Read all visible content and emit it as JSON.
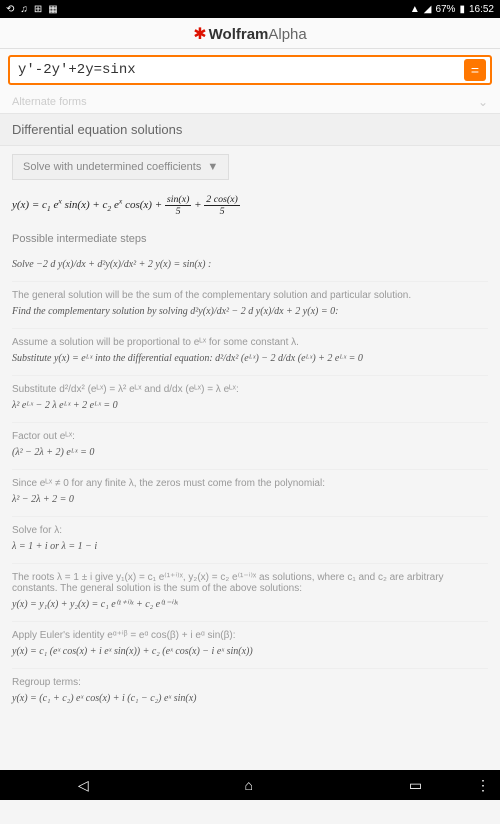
{
  "statusbar": {
    "icons_left": [
      "⟲",
      "♫",
      "⊞",
      "▦"
    ],
    "wifi": "▲",
    "signal": "◢",
    "battery_pct": "67%",
    "time": "16:52"
  },
  "logo": {
    "wolfram": "Wolfram",
    "alpha": "Alpha"
  },
  "search": {
    "value": "y'-2y'+2y=sinx",
    "submit_glyph": "="
  },
  "faded_label": "Alternate forms",
  "section_title": "Differential equation solutions",
  "dropdown_label": "Solve with undetermined coefficients",
  "main_equation": "y(x) = c₁ eˣ sin(x) + c₂ eˣ cos(x) + sin(x)/5 + 2cos(x)/5",
  "intermediate_label": "Possible intermediate steps",
  "steps": [
    {
      "txt": "",
      "math": "Solve −2 d y(x)/dx + d²y(x)/dx² + 2 y(x) = sin(x) :"
    },
    {
      "txt": "The general solution will be the sum of the complementary solution and particular solution.",
      "math": "Find the complementary solution by solving d²y(x)/dx² − 2 d y(x)/dx + 2 y(x) = 0:"
    },
    {
      "txt": "Assume a solution will be proportional to eᴸˣ for some constant λ.",
      "math": "Substitute y(x) = eᴸˣ into the differential equation:\n d²/dx² (eᴸˣ) − 2 d/dx (eᴸˣ) + 2 eᴸˣ = 0"
    },
    {
      "txt": "Substitute d²/dx² (eᴸˣ) = λ² eᴸˣ and d/dx (eᴸˣ) = λ eᴸˣ:",
      "math": "λ² eᴸˣ − 2 λ eᴸˣ + 2 eᴸˣ = 0"
    },
    {
      "txt": "Factor out eᴸˣ:",
      "math": "(λ² − 2λ + 2) eᴸˣ = 0"
    },
    {
      "txt": "Since eᴸˣ ≠ 0 for any finite λ, the zeros must come from the polynomial:",
      "math": "λ² − 2λ + 2 = 0"
    },
    {
      "txt": "Solve for λ:",
      "math": "λ = 1 + i or λ = 1 − i"
    },
    {
      "txt": "The roots λ = 1 ± i give y₁(x) = c₁ e⁽¹⁺ⁱ⁾ˣ, y₂(x) = c₂ e⁽¹⁻ⁱ⁾ˣ as solutions, where c₁ and c₂ are arbitrary constants.\nThe general solution is the sum of the above solutions:",
      "math": "y(x) = y₁(x) + y₂(x) = c₁ e⁽¹⁺ⁱ⁾ˣ + c₂ e⁽¹⁻ⁱ⁾ˣ"
    },
    {
      "txt": "Apply Euler's identity eᵅ⁺ⁱᵝ = eᵅ cos(β) + i eᵅ sin(β):",
      "math": "y(x) = c₁ (eˣ cos(x) + i eˣ sin(x)) + c₂ (eˣ cos(x) − i eˣ sin(x))"
    },
    {
      "txt": "Regroup terms:",
      "math": "y(x) = (c₁ + c₂) eˣ cos(x) + i (c₁ − c₂) eˣ sin(x)"
    }
  ],
  "navbar": {
    "back": "◁",
    "home": "⌂",
    "recent": "▭",
    "menu": "⋮"
  },
  "colors": {
    "accent": "#ff7700",
    "brand_red": "#dd1100",
    "text": "#555555",
    "muted": "#999999",
    "border": "#e0e0e0",
    "bg": "#f5f5f5"
  }
}
